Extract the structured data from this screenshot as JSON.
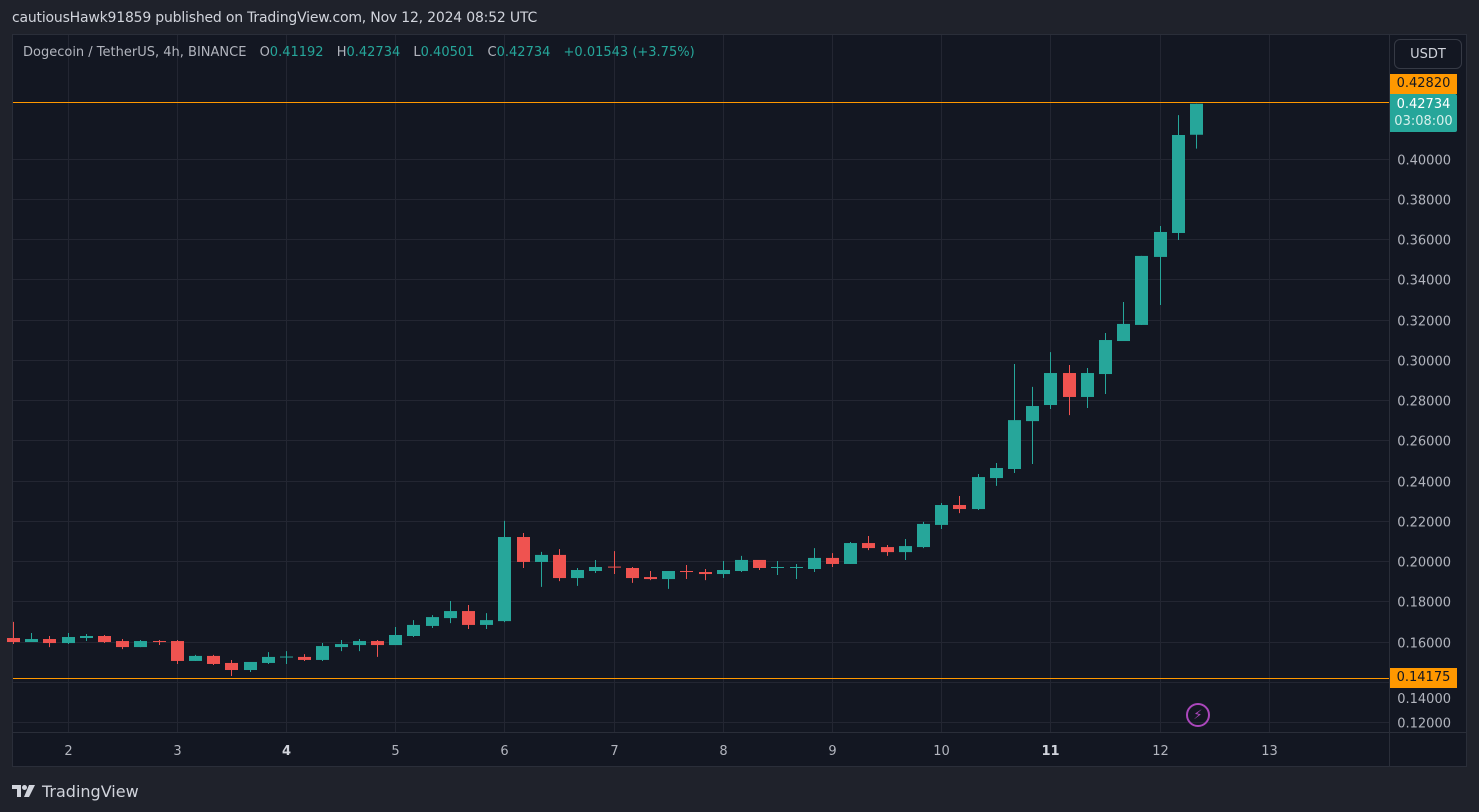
{
  "publisher_line": "cautiousHawk91859 published on TradingView.com, Nov 12, 2024 08:52 UTC",
  "legend": {
    "symbol": "Dogecoin / TetherUS, 4h, BINANCE",
    "o_label": "O",
    "o": "0.41192",
    "h_label": "H",
    "h": "0.42734",
    "l_label": "L",
    "l": "0.40501",
    "c_label": "C",
    "c": "0.42734",
    "change": "+0.01543 (+3.75%)"
  },
  "currency_button": "USDT",
  "price_labels": {
    "high_line": "0.42820",
    "last_price": "0.42734",
    "countdown": "03:08:00",
    "low_line": "0.14175"
  },
  "brand": "TradingView",
  "icons": {
    "alert": "lightning-bolt-icon",
    "logo": "tradingview-logo-icon"
  },
  "colors": {
    "up": "#26a69a",
    "down": "#ef5350",
    "level_line": "#ff9800",
    "background": "#131722",
    "grid": "#232632"
  },
  "chart_data": {
    "type": "candlestick",
    "title": "Dogecoin / TetherUS, 4h, BINANCE",
    "ylim": [
      0.112,
      0.4535
    ],
    "grid": true,
    "y_ticks": [
      "0.40000",
      "0.38000",
      "0.36000",
      "0.34000",
      "0.32000",
      "0.30000",
      "0.28000",
      "0.26000",
      "0.24000",
      "0.22000",
      "0.20000",
      "0.18000",
      "0.16000",
      "0.14000",
      "0.12000"
    ],
    "x_ticks": [
      {
        "label": "2",
        "bold": false
      },
      {
        "label": "3",
        "bold": false
      },
      {
        "label": "4",
        "bold": true
      },
      {
        "label": "5",
        "bold": false
      },
      {
        "label": "6",
        "bold": false
      },
      {
        "label": "7",
        "bold": false
      },
      {
        "label": "8",
        "bold": false
      },
      {
        "label": "9",
        "bold": false
      },
      {
        "label": "10",
        "bold": false
      },
      {
        "label": "11",
        "bold": true
      },
      {
        "label": "12",
        "bold": false
      },
      {
        "label": "13",
        "bold": false
      }
    ],
    "horizontal_lines": [
      0.4282,
      0.14175
    ],
    "candles": [
      [
        0.1618,
        0.1698,
        0.1588,
        0.1598
      ],
      [
        0.1598,
        0.1643,
        0.1598,
        0.1613
      ],
      [
        0.1613,
        0.1628,
        0.1573,
        0.1593
      ],
      [
        0.1593,
        0.1643,
        0.1588,
        0.1623
      ],
      [
        0.1618,
        0.1638,
        0.1603,
        0.1628
      ],
      [
        0.1628,
        0.1633,
        0.1593,
        0.1598
      ],
      [
        0.1603,
        0.1613,
        0.1563,
        0.1573
      ],
      [
        0.1573,
        0.1608,
        0.1573,
        0.1603
      ],
      [
        0.1603,
        0.1608,
        0.1583,
        0.1598
      ],
      [
        0.1603,
        0.1608,
        0.1489,
        0.1504
      ],
      [
        0.1504,
        0.1534,
        0.1504,
        0.1529
      ],
      [
        0.1529,
        0.1534,
        0.1484,
        0.1489
      ],
      [
        0.1494,
        0.1509,
        0.1429,
        0.1459
      ],
      [
        0.1459,
        0.1499,
        0.1449,
        0.1499
      ],
      [
        0.1494,
        0.1548,
        0.1489,
        0.1524
      ],
      [
        0.1522,
        0.1553,
        0.1489,
        0.1526
      ],
      [
        0.1524,
        0.1538,
        0.1504,
        0.1509
      ],
      [
        0.1509,
        0.1593,
        0.1504,
        0.1578
      ],
      [
        0.1573,
        0.1608,
        0.1553,
        0.1588
      ],
      [
        0.1583,
        0.1613,
        0.1553,
        0.1603
      ],
      [
        0.1603,
        0.1608,
        0.1524,
        0.1583
      ],
      [
        0.1583,
        0.1673,
        0.1583,
        0.1633
      ],
      [
        0.1628,
        0.1707,
        0.1623,
        0.1683
      ],
      [
        0.1678,
        0.1732,
        0.1668,
        0.1722
      ],
      [
        0.1717,
        0.1802,
        0.1692,
        0.1752
      ],
      [
        0.1752,
        0.1782,
        0.1663,
        0.1683
      ],
      [
        0.1683,
        0.1742,
        0.1663,
        0.1707
      ],
      [
        0.1702,
        0.22,
        0.1697,
        0.212
      ],
      [
        0.212,
        0.214,
        0.1966,
        0.1996
      ],
      [
        0.1996,
        0.2046,
        0.1872,
        0.2031
      ],
      [
        0.2031,
        0.206,
        0.1901,
        0.1916
      ],
      [
        0.1916,
        0.1966,
        0.1877,
        0.1956
      ],
      [
        0.1951,
        0.2006,
        0.1941,
        0.1971
      ],
      [
        0.1973,
        0.205,
        0.1936,
        0.1968
      ],
      [
        0.1966,
        0.1971,
        0.1892,
        0.1916
      ],
      [
        0.1921,
        0.1951,
        0.1906,
        0.1911
      ],
      [
        0.1911,
        0.1951,
        0.1862,
        0.1951
      ],
      [
        0.1951,
        0.1981,
        0.1911,
        0.1946
      ],
      [
        0.1946,
        0.1961,
        0.1906,
        0.1936
      ],
      [
        0.1936,
        0.2001,
        0.1916,
        0.1956
      ],
      [
        0.1951,
        0.2026,
        0.1946,
        0.2006
      ],
      [
        0.2006,
        0.2006,
        0.1956,
        0.1966
      ],
      [
        0.1966,
        0.2001,
        0.1931,
        0.1971
      ],
      [
        0.1966,
        0.1986,
        0.1911,
        0.1971
      ],
      [
        0.1961,
        0.2065,
        0.1946,
        0.2016
      ],
      [
        0.2016,
        0.204,
        0.1971,
        0.1986
      ],
      [
        0.1986,
        0.2095,
        0.1986,
        0.209
      ],
      [
        0.209,
        0.2125,
        0.2055,
        0.2065
      ],
      [
        0.207,
        0.208,
        0.2026,
        0.2045
      ],
      [
        0.2045,
        0.211,
        0.2006,
        0.2075
      ],
      [
        0.207,
        0.2195,
        0.2065,
        0.2185
      ],
      [
        0.218,
        0.2289,
        0.216,
        0.2279
      ],
      [
        0.2279,
        0.2324,
        0.2239,
        0.2259
      ],
      [
        0.2259,
        0.2433,
        0.2254,
        0.2418
      ],
      [
        0.2413,
        0.2488,
        0.2374,
        0.2463
      ],
      [
        0.2458,
        0.298,
        0.2438,
        0.2701
      ],
      [
        0.2696,
        0.2866,
        0.2483,
        0.2771
      ],
      [
        0.2776,
        0.3039,
        0.2756,
        0.2935
      ],
      [
        0.2935,
        0.2975,
        0.2726,
        0.2816
      ],
      [
        0.2816,
        0.296,
        0.2761,
        0.2935
      ],
      [
        0.293,
        0.3134,
        0.2831,
        0.3099
      ],
      [
        0.3094,
        0.3288,
        0.3094,
        0.3179
      ],
      [
        0.3174,
        0.3517,
        0.3174,
        0.3517
      ],
      [
        0.3512,
        0.3666,
        0.3273,
        0.3636
      ],
      [
        0.3631,
        0.4217,
        0.3596,
        0.4118
      ],
      [
        0.41192,
        0.42734,
        0.40501,
        0.42734
      ]
    ]
  }
}
